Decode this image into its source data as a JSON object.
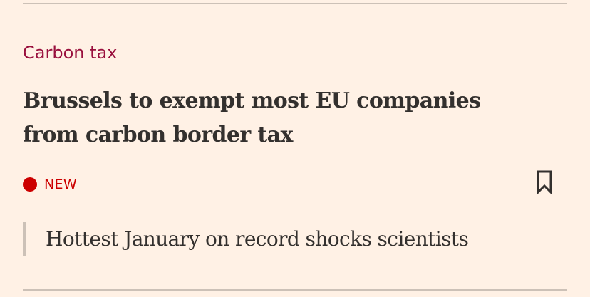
{
  "article": {
    "topic": "Carbon tax",
    "headline": "Brussels to exempt most EU companies from carbon border tax",
    "badge": "NEW",
    "bookmark_icon": "bookmark-icon"
  },
  "related": {
    "title": "Hottest January on record shocks scientists"
  },
  "colors": {
    "background": "#fff1e5",
    "topic": "#990f3d",
    "badge": "#cc0000",
    "text": "#33302e",
    "rule": "#ccc1b7"
  }
}
